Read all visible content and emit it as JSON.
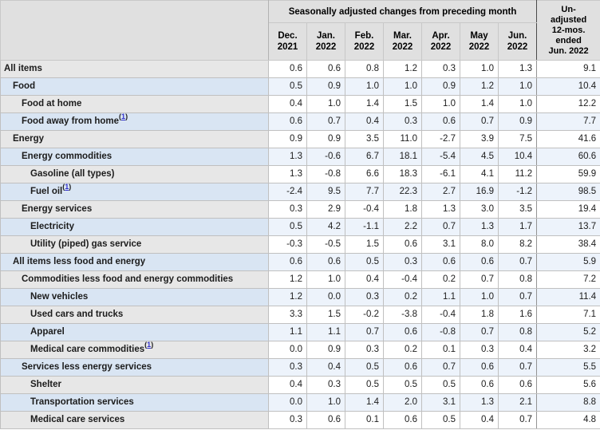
{
  "colors": {
    "header_bg": "#e0e0e0",
    "row_label_gray": "#e7e7e7",
    "row_label_blue": "#d9e5f3",
    "data_cell_white": "#ffffff",
    "data_cell_blue": "#edf3fb",
    "border": "#c0c0c0",
    "footnote_link": "#3333cc"
  },
  "chart_data": {
    "type": "table",
    "group_header": "Seasonally adjusted changes from preceding month",
    "unadjusted_column": "Un-\nadjusted\n12-mos.\nended\nJun. 2022",
    "columns": [
      "Dec.\n2021",
      "Jan.\n2022",
      "Feb.\n2022",
      "Mar.\n2022",
      "Apr.\n2022",
      "May\n2022",
      "Jun.\n2022"
    ],
    "rows": [
      {
        "label": "All items",
        "indent": 0,
        "footnote": null,
        "values": [
          "0.6",
          "0.6",
          "0.8",
          "1.2",
          "0.3",
          "1.0",
          "1.3"
        ],
        "unadjusted": "9.1"
      },
      {
        "label": "Food",
        "indent": 1,
        "footnote": null,
        "values": [
          "0.5",
          "0.9",
          "1.0",
          "1.0",
          "0.9",
          "1.2",
          "1.0"
        ],
        "unadjusted": "10.4"
      },
      {
        "label": "Food at home",
        "indent": 2,
        "footnote": null,
        "values": [
          "0.4",
          "1.0",
          "1.4",
          "1.5",
          "1.0",
          "1.4",
          "1.0"
        ],
        "unadjusted": "12.2"
      },
      {
        "label": "Food away from home",
        "indent": 2,
        "footnote": "1",
        "values": [
          "0.6",
          "0.7",
          "0.4",
          "0.3",
          "0.6",
          "0.7",
          "0.9"
        ],
        "unadjusted": "7.7"
      },
      {
        "label": "Energy",
        "indent": 1,
        "footnote": null,
        "values": [
          "0.9",
          "0.9",
          "3.5",
          "11.0",
          "-2.7",
          "3.9",
          "7.5"
        ],
        "unadjusted": "41.6"
      },
      {
        "label": "Energy commodities",
        "indent": 2,
        "footnote": null,
        "values": [
          "1.3",
          "-0.6",
          "6.7",
          "18.1",
          "-5.4",
          "4.5",
          "10.4"
        ],
        "unadjusted": "60.6"
      },
      {
        "label": "Gasoline (all types)",
        "indent": 3,
        "footnote": null,
        "values": [
          "1.3",
          "-0.8",
          "6.6",
          "18.3",
          "-6.1",
          "4.1",
          "11.2"
        ],
        "unadjusted": "59.9"
      },
      {
        "label": "Fuel oil",
        "indent": 3,
        "footnote": "1",
        "values": [
          "-2.4",
          "9.5",
          "7.7",
          "22.3",
          "2.7",
          "16.9",
          "-1.2"
        ],
        "unadjusted": "98.5"
      },
      {
        "label": "Energy services",
        "indent": 2,
        "footnote": null,
        "values": [
          "0.3",
          "2.9",
          "-0.4",
          "1.8",
          "1.3",
          "3.0",
          "3.5"
        ],
        "unadjusted": "19.4"
      },
      {
        "label": "Electricity",
        "indent": 3,
        "footnote": null,
        "values": [
          "0.5",
          "4.2",
          "-1.1",
          "2.2",
          "0.7",
          "1.3",
          "1.7"
        ],
        "unadjusted": "13.7"
      },
      {
        "label": "Utility (piped) gas service",
        "indent": 3,
        "footnote": null,
        "values": [
          "-0.3",
          "-0.5",
          "1.5",
          "0.6",
          "3.1",
          "8.0",
          "8.2"
        ],
        "unadjusted": "38.4"
      },
      {
        "label": "All items less food and energy",
        "indent": 1,
        "footnote": null,
        "values": [
          "0.6",
          "0.6",
          "0.5",
          "0.3",
          "0.6",
          "0.6",
          "0.7"
        ],
        "unadjusted": "5.9"
      },
      {
        "label": "Commodities less food and energy commodities",
        "indent": 2,
        "footnote": null,
        "values": [
          "1.2",
          "1.0",
          "0.4",
          "-0.4",
          "0.2",
          "0.7",
          "0.8"
        ],
        "unadjusted": "7.2"
      },
      {
        "label": "New vehicles",
        "indent": 3,
        "footnote": null,
        "values": [
          "1.2",
          "0.0",
          "0.3",
          "0.2",
          "1.1",
          "1.0",
          "0.7"
        ],
        "unadjusted": "11.4"
      },
      {
        "label": "Used cars and trucks",
        "indent": 3,
        "footnote": null,
        "values": [
          "3.3",
          "1.5",
          "-0.2",
          "-3.8",
          "-0.4",
          "1.8",
          "1.6"
        ],
        "unadjusted": "7.1"
      },
      {
        "label": "Apparel",
        "indent": 3,
        "footnote": null,
        "values": [
          "1.1",
          "1.1",
          "0.7",
          "0.6",
          "-0.8",
          "0.7",
          "0.8"
        ],
        "unadjusted": "5.2"
      },
      {
        "label": "Medical care commodities",
        "indent": 3,
        "footnote": "1",
        "values": [
          "0.0",
          "0.9",
          "0.3",
          "0.2",
          "0.1",
          "0.3",
          "0.4"
        ],
        "unadjusted": "3.2"
      },
      {
        "label": "Services less energy services",
        "indent": 2,
        "footnote": null,
        "values": [
          "0.3",
          "0.4",
          "0.5",
          "0.6",
          "0.7",
          "0.6",
          "0.7"
        ],
        "unadjusted": "5.5"
      },
      {
        "label": "Shelter",
        "indent": 3,
        "footnote": null,
        "values": [
          "0.4",
          "0.3",
          "0.5",
          "0.5",
          "0.5",
          "0.6",
          "0.6"
        ],
        "unadjusted": "5.6"
      },
      {
        "label": "Transportation services",
        "indent": 3,
        "footnote": null,
        "values": [
          "0.0",
          "1.0",
          "1.4",
          "2.0",
          "3.1",
          "1.3",
          "2.1"
        ],
        "unadjusted": "8.8"
      },
      {
        "label": "Medical care services",
        "indent": 3,
        "footnote": null,
        "values": [
          "0.3",
          "0.6",
          "0.1",
          "0.6",
          "0.5",
          "0.4",
          "0.7"
        ],
        "unadjusted": "4.8"
      }
    ]
  }
}
